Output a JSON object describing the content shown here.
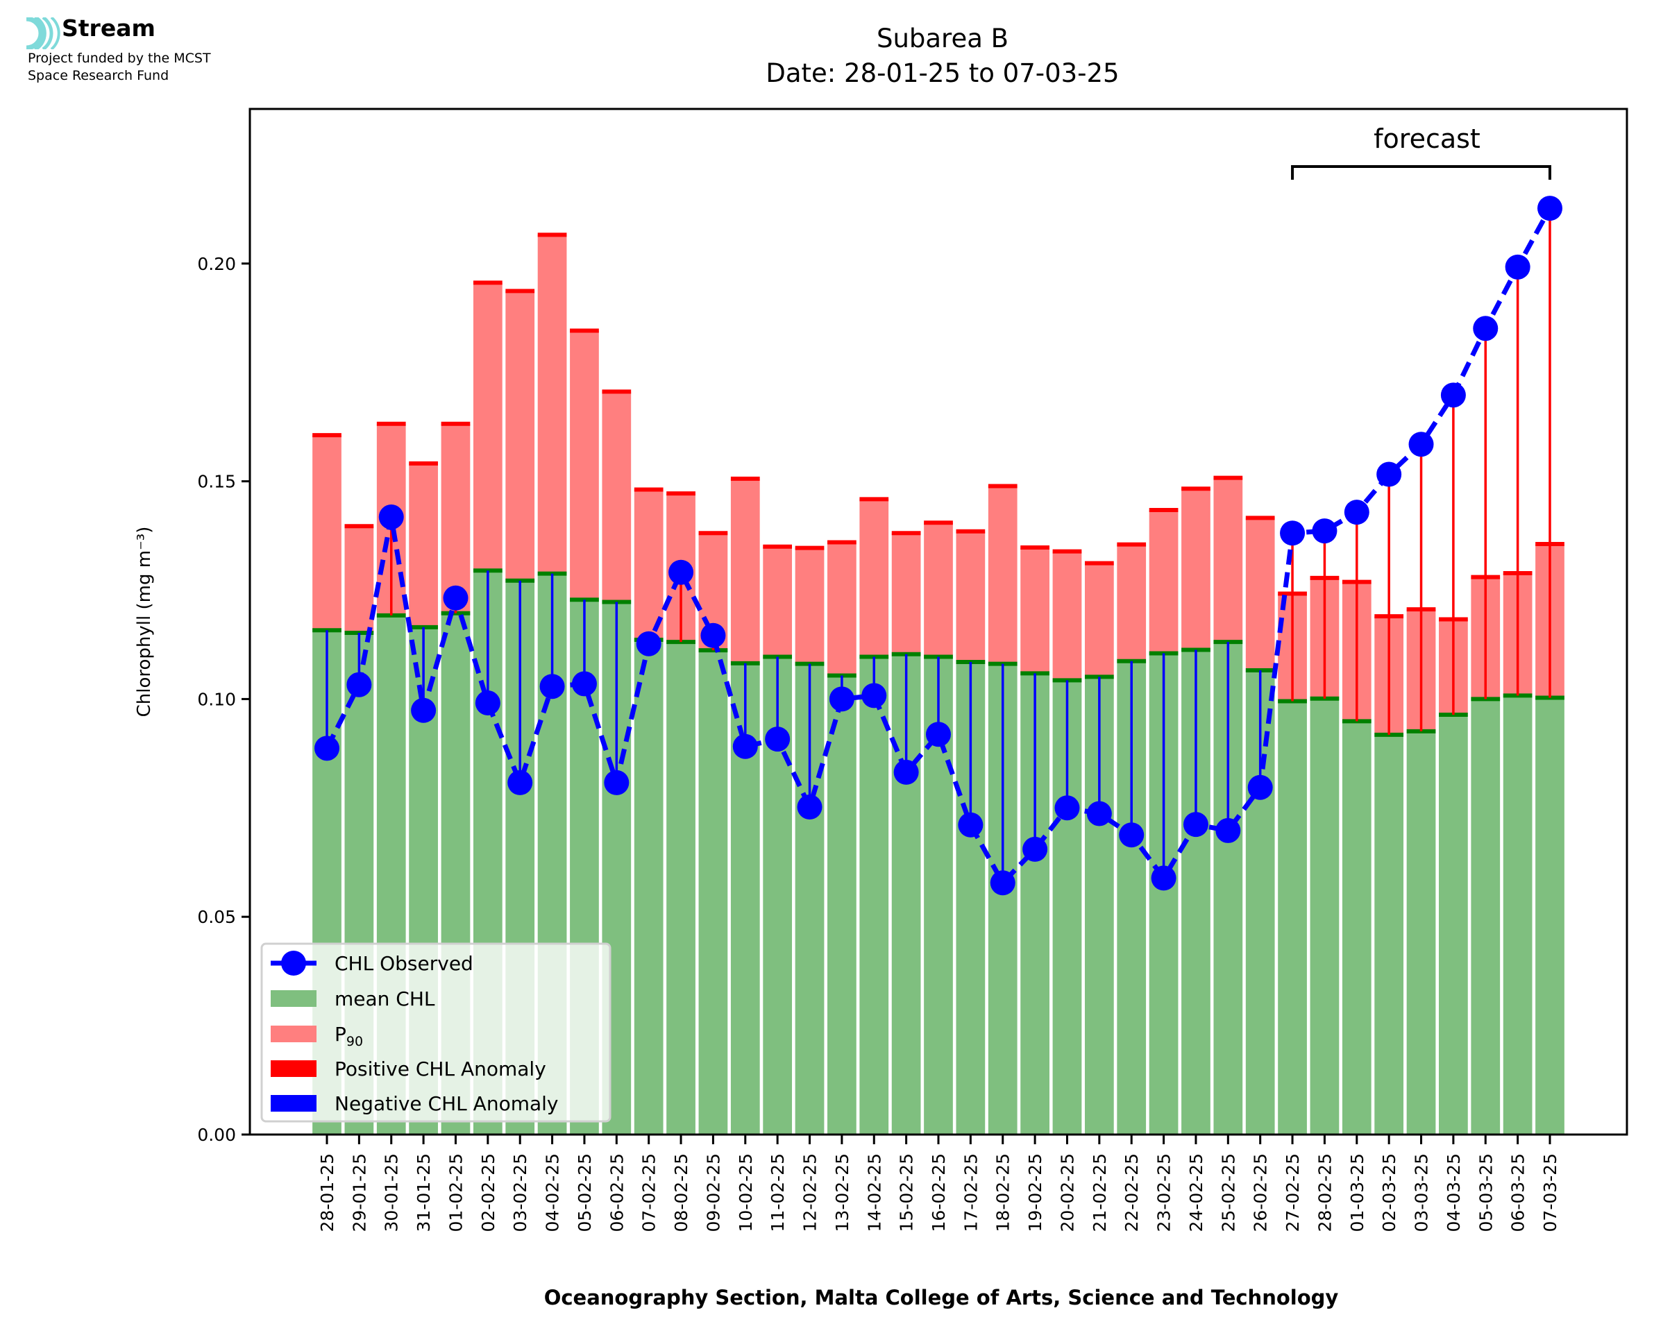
{
  "logo": {
    "name": "Stream",
    "line1": "Project funded by the MCST",
    "line2": "Space Research Fund",
    "accent": "#7fdada"
  },
  "colors": {
    "mean": "#7fbf7f",
    "mean_edge": "#008000",
    "p90": "#ff7f7f",
    "p90_edge": "#ff0000",
    "positive": "#ff0000",
    "negative": "#0000ff",
    "observed": "#0000ff"
  },
  "chart_data": {
    "type": "bar",
    "title": "Subarea B",
    "subtitle": "Date: 28-01-25 to 07-03-25",
    "xlabel": "Oceanography Section, Malta College of Arts, Science and Technology",
    "ylabel": "Chlorophyll (mg m⁻³)",
    "ylim": [
      0,
      0.2355
    ],
    "yticks": [
      "0.00",
      "0.05",
      "0.10",
      "0.15",
      "0.20"
    ],
    "ytick_values": [
      0,
      0.05,
      0.1,
      0.15,
      0.2
    ],
    "grid": false,
    "legend_position": "lower-left",
    "categories": [
      "28-01-25",
      "29-01-25",
      "30-01-25",
      "31-01-25",
      "01-02-25",
      "02-02-25",
      "03-02-25",
      "04-02-25",
      "05-02-25",
      "06-02-25",
      "07-02-25",
      "08-02-25",
      "09-02-25",
      "10-02-25",
      "11-02-25",
      "12-02-25",
      "13-02-25",
      "14-02-25",
      "15-02-25",
      "16-02-25",
      "17-02-25",
      "18-02-25",
      "19-02-25",
      "20-02-25",
      "21-02-25",
      "22-02-25",
      "23-02-25",
      "24-02-25",
      "25-02-25",
      "26-02-25",
      "27-02-25",
      "28-02-25",
      "01-03-25",
      "02-03-25",
      "03-03-25",
      "04-03-25",
      "05-03-25",
      "06-03-25",
      "07-03-25"
    ],
    "series": [
      {
        "name": "mean CHL",
        "kind": "bar",
        "values": [
          0.1158,
          0.1152,
          0.1192,
          0.1165,
          0.1197,
          0.1295,
          0.1272,
          0.1288,
          0.1228,
          0.1223,
          0.1136,
          0.1131,
          0.1112,
          0.1082,
          0.1097,
          0.1081,
          0.1054,
          0.1097,
          0.1103,
          0.1097,
          0.1085,
          0.1081,
          0.1059,
          0.1043,
          0.1051,
          0.1087,
          0.1105,
          0.1113,
          0.1131,
          0.1066,
          0.0995,
          0.1001,
          0.0949,
          0.0918,
          0.0926,
          0.0964,
          0.1,
          0.1008,
          0.1003
        ]
      },
      {
        "name": "P90",
        "kind": "bar",
        "values": [
          0.1606,
          0.1397,
          0.1632,
          0.1541,
          0.1632,
          0.1956,
          0.1937,
          0.2066,
          0.1846,
          0.1706,
          0.1481,
          0.1472,
          0.1381,
          0.1506,
          0.135,
          0.1347,
          0.136,
          0.1459,
          0.1381,
          0.1405,
          0.1385,
          0.1489,
          0.1348,
          0.1339,
          0.1312,
          0.1355,
          0.1434,
          0.1483,
          0.1508,
          0.1416,
          0.1242,
          0.1278,
          0.1269,
          0.119,
          0.1206,
          0.1183,
          0.128,
          0.1289,
          0.1356
        ]
      },
      {
        "name": "CHL Observed",
        "kind": "line",
        "values": [
          0.0887,
          0.1033,
          0.1418,
          0.0974,
          0.1232,
          0.0991,
          0.0808,
          0.1029,
          0.1035,
          0.0808,
          0.1127,
          0.1291,
          0.1146,
          0.0891,
          0.0908,
          0.0752,
          0.1,
          0.1008,
          0.0832,
          0.0919,
          0.0711,
          0.0578,
          0.0655,
          0.075,
          0.0737,
          0.0688,
          0.0589,
          0.0712,
          0.0698,
          0.0797,
          0.1381,
          0.1386,
          0.1429,
          0.1516,
          0.1585,
          0.1698,
          0.1851,
          0.1992,
          0.2127
        ]
      }
    ],
    "legend": [
      {
        "label": "CHL Observed",
        "kind": "line-marker"
      },
      {
        "label": "mean CHL",
        "kind": "patch-mean"
      },
      {
        "label": "P",
        "sub": "90",
        "kind": "patch-p90"
      },
      {
        "label": "Positive CHL Anomaly",
        "kind": "patch-positive"
      },
      {
        "label": "Negative CHL Anomaly",
        "kind": "patch-negative"
      }
    ],
    "annotation": {
      "text": "forecast",
      "from": "27-02-25",
      "to": "07-03-25"
    }
  }
}
